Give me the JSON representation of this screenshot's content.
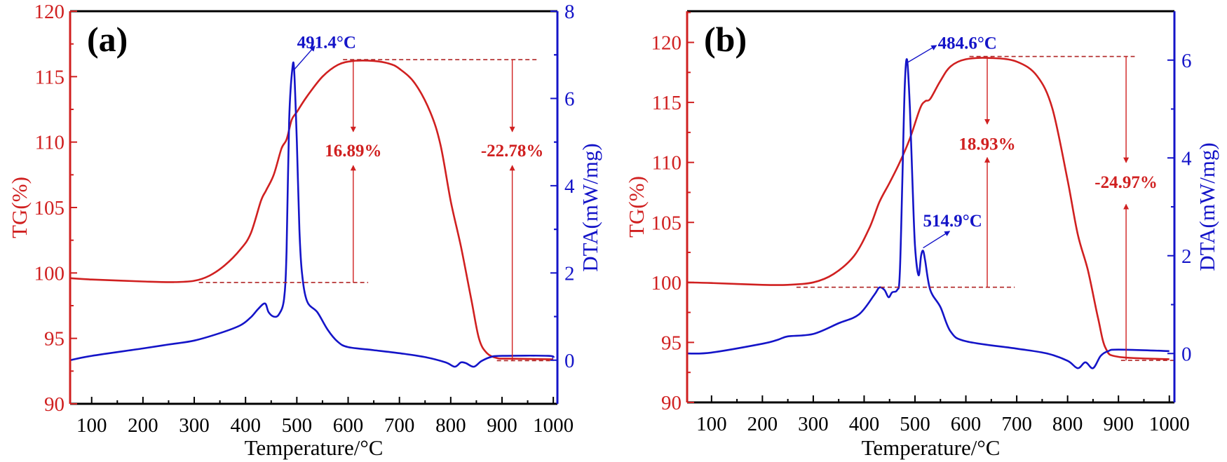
{
  "colors": {
    "tg": "#d02020",
    "dta": "#1414c8",
    "frame": "#000000"
  },
  "chart_data": [
    {
      "type": "line",
      "panel_label": "(a)",
      "xlabel": "Temperature/°C",
      "ylabel_left": "TG(%)",
      "ylabel_right": "DTA(mW/mg)",
      "xlim": [
        58,
        1008
      ],
      "ylim_left": [
        90,
        120
      ],
      "ylim_right": [
        -1,
        8
      ],
      "xticks": [
        "100",
        "200",
        "300",
        "400",
        "500",
        "600",
        "700",
        "800",
        "900",
        "1000"
      ],
      "yticks_left": [
        "90",
        "95",
        "100",
        "105",
        "110",
        "115",
        "120"
      ],
      "yticks_right": [
        "0",
        "2",
        "4",
        "6",
        "8"
      ],
      "grid": false,
      "series": [
        {
          "axis": "left",
          "color": "#d02020",
          "x": [
            58,
            100,
            200,
            260,
            300,
            330,
            360,
            390,
            410,
            430,
            440,
            455,
            470,
            480,
            490,
            500,
            520,
            550,
            580,
            610,
            650,
            680,
            700,
            730,
            760,
            780,
            800,
            820,
            840,
            855,
            870,
            890,
            910,
            1000
          ],
          "y": [
            99.6,
            99.5,
            99.35,
            99.3,
            99.4,
            99.8,
            100.6,
            101.8,
            103,
            105.5,
            106.3,
            107.5,
            109.5,
            110.2,
            111.7,
            112.3,
            113.5,
            115,
            115.9,
            116.2,
            116.2,
            116.0,
            115.6,
            114.5,
            112.3,
            109.8,
            105.5,
            102,
            98,
            95,
            93.9,
            93.5,
            93.45,
            93.4
          ]
        },
        {
          "axis": "right",
          "color": "#1414c8",
          "x": [
            58,
            100,
            200,
            250,
            300,
            350,
            390,
            410,
            425,
            438,
            445,
            455,
            465,
            475,
            480,
            485,
            491.4,
            495,
            500,
            505,
            510,
            520,
            540,
            560,
            580,
            600,
            650,
            700,
            750,
            790,
            808,
            820,
            830,
            845,
            860,
            880,
            900,
            990,
            1000
          ],
          "y": [
            0,
            0.1,
            0.27,
            0.36,
            0.45,
            0.62,
            0.8,
            0.98,
            1.18,
            1.3,
            1.1,
            1.0,
            1.05,
            1.4,
            2.5,
            5.5,
            6.7,
            6.6,
            5,
            3,
            2,
            1.35,
            1.1,
            0.7,
            0.42,
            0.3,
            0.23,
            0.16,
            0.07,
            -0.05,
            -0.15,
            -0.05,
            -0.07,
            -0.15,
            -0.02,
            0.08,
            0.1,
            0.1,
            0.05
          ]
        }
      ],
      "annotations": {
        "dashed_left": [
          {
            "x0": 309,
            "x1": 639,
            "y": 99.27
          },
          {
            "x0": 590,
            "x1": 970,
            "y": 116.3
          },
          {
            "x0": 890,
            "x1": 1000,
            "y": 93.3
          }
        ],
        "arrows_left": [
          {
            "x": 610,
            "y0": 116.3,
            "y1": 110.8
          },
          {
            "x": 610,
            "y0": 99.27,
            "y1": 108.2
          },
          {
            "x": 920,
            "y0": 116.3,
            "y1": 110.8
          },
          {
            "x": 920,
            "y0": 93.3,
            "y1": 108.2
          }
        ],
        "labels_left": [
          {
            "text": "16.89%",
            "x": 610,
            "y": 109.4
          },
          {
            "text": "-22.78%",
            "x": 920,
            "y": 109.4
          }
        ],
        "peak_arrows_right": [
          {
            "x0": 494,
            "y0": 6.65,
            "x1": 535,
            "y1": 7.2
          }
        ],
        "peak_labels_right": [
          {
            "text": "491.4°C",
            "x": 558,
            "y": 7.3
          }
        ]
      }
    },
    {
      "type": "line",
      "panel_label": "(b)",
      "xlabel": "Temperature/°C",
      "ylabel_left": "TG(%)",
      "ylabel_right": "DTA(mW/mg)",
      "xlim": [
        52,
        1010
      ],
      "ylim_left": [
        90,
        122.6
      ],
      "ylim_right": [
        -1,
        7
      ],
      "xticks": [
        "100",
        "200",
        "300",
        "400",
        "500",
        "600",
        "700",
        "800",
        "900",
        "1000"
      ],
      "yticks_left": [
        "90",
        "95",
        "100",
        "105",
        "110",
        "115",
        "120"
      ],
      "yticks_right": [
        "0",
        "2",
        "4",
        "6"
      ],
      "grid": false,
      "series": [
        {
          "axis": "left",
          "color": "#d02020",
          "x": [
            52,
            100,
            200,
            250,
            300,
            340,
            380,
            410,
            430,
            450,
            470,
            490,
            510,
            520,
            530,
            550,
            570,
            600,
            650,
            700,
            740,
            770,
            800,
            820,
            840,
            860,
            875,
            900,
            1000
          ],
          "y": [
            100,
            99.95,
            99.8,
            99.8,
            100,
            100.7,
            102.2,
            104.5,
            106.7,
            108.3,
            110,
            112,
            114.5,
            115.1,
            115.3,
            116.8,
            118,
            118.6,
            118.7,
            118.4,
            117.2,
            114.5,
            108.5,
            104,
            101,
            97,
            94.5,
            93.8,
            93.6
          ]
        },
        {
          "axis": "right",
          "color": "#1414c8",
          "x": [
            52,
            100,
            200,
            230,
            250,
            300,
            350,
            390,
            420,
            430,
            440,
            448,
            455,
            465,
            470,
            475,
            480,
            484.6,
            490,
            495,
            500,
            507,
            512,
            516,
            520,
            530,
            550,
            570,
            600,
            700,
            760,
            800,
            820,
            835,
            850,
            865,
            880,
            900,
            1000
          ],
          "y": [
            0,
            0.02,
            0.2,
            0.28,
            0.35,
            0.4,
            0.62,
            0.8,
            1.2,
            1.35,
            1.3,
            1.15,
            1.25,
            1.3,
            1.6,
            3.5,
            5.5,
            6.0,
            5,
            3.5,
            2.2,
            1.6,
            2.0,
            2.1,
            1.9,
            1.3,
            0.95,
            0.45,
            0.25,
            0.1,
            0.0,
            -0.15,
            -0.3,
            -0.18,
            -0.3,
            -0.05,
            0.05,
            0.08,
            0.05
          ]
        }
      ],
      "annotations": {
        "dashed_left": [
          {
            "x0": 267,
            "x1": 696,
            "y": 99.6
          },
          {
            "x0": 607,
            "x1": 932,
            "y": 118.83
          },
          {
            "x0": 905,
            "x1": 1010,
            "y": 93.5
          }
        ],
        "arrows_left": [
          {
            "x": 642,
            "y0": 118.83,
            "y1": 113.2
          },
          {
            "x": 642,
            "y0": 99.6,
            "y1": 110.4
          },
          {
            "x": 915,
            "y0": 118.83,
            "y1": 110.0
          },
          {
            "x": 915,
            "y0": 93.5,
            "y1": 106.5
          }
        ],
        "labels_left": [
          {
            "text": "18.93%",
            "x": 642,
            "y": 111.6
          },
          {
            "text": "-24.97%",
            "x": 915,
            "y": 108.4
          }
        ],
        "peak_arrows_right": [
          {
            "x0": 485,
            "y0": 5.95,
            "x1": 542,
            "y1": 6.3
          },
          {
            "x0": 516,
            "y0": 2.16,
            "x1": 568,
            "y1": 2.5
          }
        ],
        "peak_labels_right": [
          {
            "text": "484.6°C",
            "x": 603,
            "y": 6.36
          },
          {
            "text": "514.9°C",
            "x": 574,
            "y": 2.73
          }
        ]
      }
    }
  ]
}
